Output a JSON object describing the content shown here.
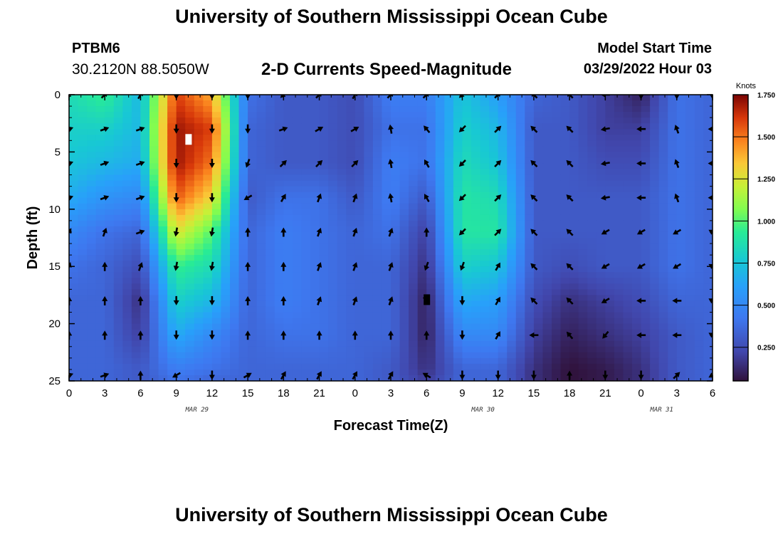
{
  "header": {
    "title": "University of Southern Mississippi Ocean Cube",
    "station": "PTBM6",
    "coordinates": "30.2120N  88.5050W",
    "plot_title": "2-D Currents Speed-Magnitude",
    "model_start_label": "Model Start Time",
    "model_start_value": "03/29/2022 Hour 03"
  },
  "footer": {
    "title": "University of Southern Mississippi Ocean Cube"
  },
  "chart_data": {
    "type": "heatmap",
    "title": "2-D Currents Speed-Magnitude",
    "xlabel": "Forecast Time(Z)",
    "ylabel": "Depth (ft)",
    "x_tick_labels": [
      "0",
      "3",
      "6",
      "9",
      "12",
      "15",
      "18",
      "21",
      "0",
      "3",
      "6",
      "9",
      "12",
      "15",
      "18",
      "21",
      "0",
      "3",
      "6"
    ],
    "y_tick_labels": [
      "0",
      "5",
      "10",
      "15",
      "20",
      "25"
    ],
    "date_labels": [
      {
        "text": "MAR 29",
        "after_tick": 4
      },
      {
        "text": "MAR 30",
        "after_tick": 12
      },
      {
        "text": "MAR 31",
        "after_tick": 17
      }
    ],
    "colorbar": {
      "title": "Knots",
      "tick_labels": [
        "0.250",
        "0.500",
        "0.750",
        "1.000",
        "1.250",
        "1.500",
        "1.750"
      ],
      "range": [
        0.05,
        1.75
      ]
    },
    "hours": [
      0,
      3,
      6,
      9,
      12,
      15,
      18,
      21,
      24,
      27,
      30,
      33,
      36,
      39,
      42,
      45,
      48,
      51,
      54
    ],
    "depths": [
      0,
      3,
      6,
      9,
      12,
      15,
      18,
      21,
      24,
      25
    ],
    "speed": [
      [
        0.85,
        0.95,
        0.7,
        1.6,
        1.4,
        0.4,
        0.3,
        0.3,
        0.25,
        0.45,
        0.45,
        0.75,
        0.6,
        0.35,
        0.3,
        0.2,
        0.1,
        0.4,
        0.35
      ],
      [
        0.8,
        0.8,
        0.7,
        1.7,
        1.6,
        0.35,
        0.3,
        0.3,
        0.25,
        0.4,
        0.4,
        0.8,
        0.7,
        0.3,
        0.3,
        0.2,
        0.2,
        0.4,
        0.35
      ],
      [
        0.75,
        0.7,
        0.65,
        1.7,
        1.5,
        0.35,
        0.3,
        0.3,
        0.25,
        0.45,
        0.4,
        0.85,
        0.75,
        0.3,
        0.3,
        0.25,
        0.25,
        0.4,
        0.35
      ],
      [
        0.65,
        0.55,
        0.5,
        1.55,
        1.3,
        0.3,
        0.4,
        0.4,
        0.3,
        0.45,
        0.3,
        0.9,
        0.85,
        0.3,
        0.3,
        0.3,
        0.3,
        0.4,
        0.35
      ],
      [
        0.5,
        0.4,
        0.35,
        1.25,
        1.0,
        0.35,
        0.45,
        0.4,
        0.35,
        0.4,
        0.2,
        0.9,
        0.9,
        0.3,
        0.3,
        0.3,
        0.3,
        0.4,
        0.35
      ],
      [
        0.4,
        0.35,
        0.25,
        0.95,
        0.85,
        0.35,
        0.45,
        0.4,
        0.35,
        0.35,
        0.15,
        0.8,
        0.75,
        0.3,
        0.25,
        0.3,
        0.3,
        0.4,
        0.35
      ],
      [
        0.35,
        0.35,
        0.15,
        0.8,
        0.7,
        0.35,
        0.45,
        0.4,
        0.35,
        0.35,
        0.1,
        0.65,
        0.6,
        0.25,
        0.15,
        0.2,
        0.25,
        0.35,
        0.35
      ],
      [
        0.35,
        0.35,
        0.2,
        0.65,
        0.5,
        0.35,
        0.4,
        0.4,
        0.35,
        0.35,
        0.1,
        0.5,
        0.5,
        0.2,
        0.1,
        0.15,
        0.2,
        0.3,
        0.35
      ],
      [
        0.35,
        0.35,
        0.3,
        0.45,
        0.4,
        0.35,
        0.35,
        0.35,
        0.35,
        0.3,
        0.15,
        0.35,
        0.35,
        0.15,
        0.05,
        0.08,
        0.15,
        0.3,
        0.35
      ],
      [
        0.35,
        0.35,
        0.3,
        0.4,
        0.35,
        0.35,
        0.35,
        0.35,
        0.35,
        0.3,
        0.2,
        0.35,
        0.35,
        0.15,
        0.05,
        0.08,
        0.15,
        0.3,
        0.35
      ]
    ],
    "vector_depths": [
      0,
      3,
      6,
      9,
      12,
      15,
      18,
      21,
      24.5
    ],
    "vector_direction_deg": [
      [
        220,
        45,
        30,
        180,
        180,
        180,
        225,
        45,
        30,
        45,
        45,
        225,
        45,
        315,
        315,
        270,
        180,
        180,
        180
      ],
      [
        70,
        70,
        70,
        180,
        180,
        180,
        70,
        60,
        60,
        350,
        320,
        225,
        45,
        315,
        315,
        260,
        270,
        340,
        270
      ],
      [
        70,
        70,
        70,
        180,
        180,
        200,
        45,
        45,
        45,
        350,
        330,
        225,
        45,
        315,
        315,
        260,
        270,
        340,
        270
      ],
      [
        70,
        70,
        70,
        180,
        180,
        240,
        30,
        20,
        20,
        350,
        330,
        225,
        45,
        315,
        315,
        260,
        270,
        340,
        270
      ],
      [
        30,
        20,
        70,
        190,
        190,
        0,
        0,
        20,
        20,
        20,
        0,
        225,
        45,
        315,
        315,
        240,
        240,
        240,
        300
      ],
      [
        20,
        0,
        20,
        190,
        190,
        0,
        0,
        20,
        20,
        20,
        200,
        200,
        30,
        315,
        315,
        240,
        240,
        240,
        300
      ],
      [
        0,
        0,
        0,
        180,
        180,
        0,
        0,
        20,
        20,
        20,
        140,
        180,
        30,
        315,
        315,
        240,
        270,
        270,
        300
      ],
      [
        0,
        0,
        0,
        180,
        180,
        0,
        0,
        0,
        0,
        0,
        0,
        180,
        30,
        270,
        320,
        220,
        270,
        270,
        300
      ],
      [
        70,
        70,
        0,
        240,
        180,
        60,
        30,
        30,
        30,
        30,
        300,
        180,
        180,
        180,
        0,
        180,
        180,
        45,
        240
      ]
    ],
    "markers": [
      {
        "hour": 10,
        "depth": 4,
        "color": "#ffffff"
      },
      {
        "hour": 30,
        "depth": 18,
        "color": "#000000"
      }
    ]
  }
}
